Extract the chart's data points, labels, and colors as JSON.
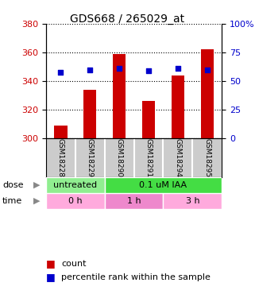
{
  "title": "GDS668 / 265029_at",
  "samples": [
    "GSM18228",
    "GSM18229",
    "GSM18290",
    "GSM18291",
    "GSM18294",
    "GSM18295"
  ],
  "bar_values": [
    309,
    334,
    359,
    326,
    344,
    362
  ],
  "bar_bottom": 300,
  "percentile_values": [
    346,
    348,
    349,
    347,
    349,
    348
  ],
  "ylim_left": [
    300,
    380
  ],
  "ylim_right": [
    0,
    100
  ],
  "yticks_left": [
    300,
    320,
    340,
    360,
    380
  ],
  "yticks_right": [
    0,
    25,
    50,
    75,
    100
  ],
  "bar_color": "#cc0000",
  "percentile_color": "#0000cc",
  "dose_labels": [
    {
      "text": "untreated",
      "start": 0,
      "end": 2,
      "color": "#90ee90"
    },
    {
      "text": "0.1 uM IAA",
      "start": 2,
      "end": 6,
      "color": "#44dd44"
    }
  ],
  "time_labels": [
    {
      "text": "0 h",
      "start": 0,
      "end": 2,
      "color": "#ffaadd"
    },
    {
      "text": "1 h",
      "start": 2,
      "end": 4,
      "color": "#ee88cc"
    },
    {
      "text": "3 h",
      "start": 4,
      "end": 6,
      "color": "#ffaadd"
    }
  ],
  "legend_count_label": "count",
  "legend_percentile_label": "percentile rank within the sample",
  "tick_label_color_left": "#cc0000",
  "tick_label_color_right": "#0000cc",
  "sample_box_color": "#cccccc",
  "arrow_color": "#888888"
}
